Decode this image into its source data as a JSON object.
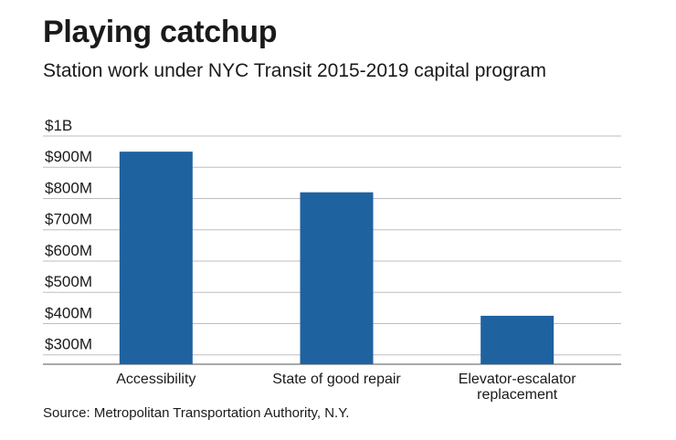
{
  "title": "Playing catchup",
  "subtitle": "Station work under NYC Transit 2015-2019 capital program",
  "source": "Source: Metropolitan Transportation Authority, N.Y.",
  "colors": {
    "bar": "#1f62a0",
    "grid": "#bdbdbd",
    "axis": "#555555"
  },
  "chart_data": {
    "type": "bar",
    "title": "Playing catchup",
    "subtitle": "Station work under NYC Transit 2015-2019 capital program",
    "categories": [
      [
        "Accessibility"
      ],
      [
        "State of good repair"
      ],
      [
        "Elevator-escalator",
        "replacement"
      ]
    ],
    "values": [
      950,
      820,
      425
    ],
    "unit": "millions USD",
    "ylim": [
      270,
      1000
    ],
    "yticks": [
      300,
      400,
      500,
      600,
      700,
      800,
      900,
      1000
    ],
    "ytick_labels": [
      "$300M",
      "$400M",
      "$500M",
      "$600M",
      "$700M",
      "$800M",
      "$900M",
      "$1B"
    ],
    "grid": true,
    "legend": "none"
  }
}
